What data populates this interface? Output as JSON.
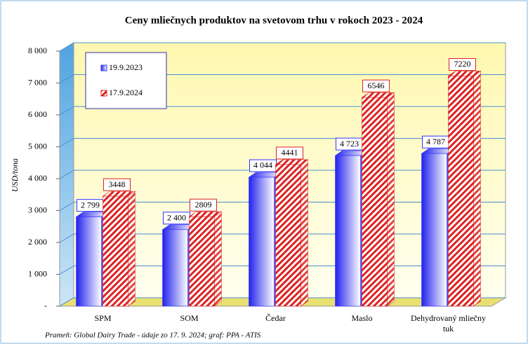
{
  "chart_data": {
    "type": "bar",
    "title": "Ceny mliečnych produktov na svetovom trhu v rokoch 2023 - 2024",
    "y_label": "USD/tona",
    "source": "Prameň: Global Dairy Trade - údaje zo 17. 9. 2024; graf: PPA - ATIS",
    "categories": [
      "SPM",
      "SOM",
      "Čedar",
      "Maslo",
      "Dehydrovaný mliečny tuk"
    ],
    "series": [
      {
        "name": "19.9.2023",
        "color": "#3333ff",
        "values": [
          2799,
          2400,
          4044,
          4723,
          4787
        ],
        "value_labels": [
          "2 799",
          "2 400",
          "4 044",
          "4 723",
          "4 787"
        ]
      },
      {
        "name": "17.9.2024",
        "color": "#dd2222",
        "values": [
          3448,
          2809,
          4441,
          6546,
          7220
        ]
      }
    ],
    "ylim": [
      0,
      8000
    ],
    "yticks": [
      {
        "value": 0,
        "label": "-"
      },
      {
        "value": 1000,
        "label": "1 000"
      },
      {
        "value": 2000,
        "label": "2 000"
      },
      {
        "value": 3000,
        "label": "3 000"
      },
      {
        "value": 4000,
        "label": "4 000"
      },
      {
        "value": 5000,
        "label": "5 000"
      },
      {
        "value": 6000,
        "label": "6 000"
      },
      {
        "value": 7000,
        "label": "7 000"
      },
      {
        "value": 8000,
        "label": "8 000"
      }
    ],
    "grid": true,
    "legend": "top-left"
  }
}
